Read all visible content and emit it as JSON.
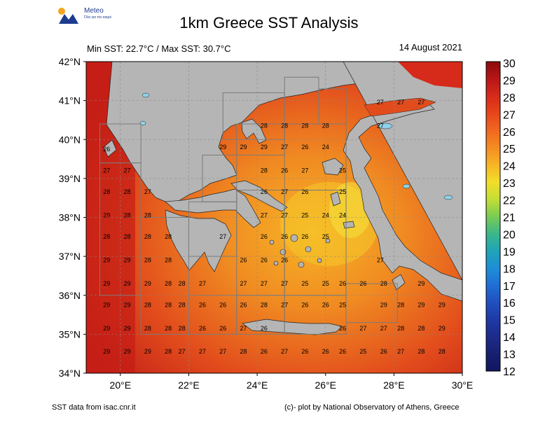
{
  "logo": {
    "name": "Meteo",
    "tagline": "Όλα για τον καιρό"
  },
  "title": "1km Greece SST Analysis",
  "subtitle": "Min SST: 22.7°C / Max SST: 30.7°C",
  "date": "14 August 2021",
  "footer_left": "SST data from isac.cnr.it",
  "footer_right": "(c)- plot by National Observatory of Athens, Greece",
  "map": {
    "lat_range": [
      34,
      42
    ],
    "lon_range": [
      19,
      30
    ],
    "lat_labels": [
      "42°N",
      "41°N",
      "40°N",
      "39°N",
      "38°N",
      "37°N",
      "36°N",
      "35°N",
      "34°N"
    ],
    "lon_labels": [
      "20°E",
      "22°E",
      "24°E",
      "26°E",
      "28°E",
      "30°E"
    ],
    "colors": {
      "land": "#b5b5b5",
      "grid_box": "#7a7a7a"
    },
    "sst_labels": [
      {
        "lon": 27.6,
        "lat": 40.9,
        "v": "27"
      },
      {
        "lon": 28.2,
        "lat": 40.9,
        "v": "27"
      },
      {
        "lon": 28.8,
        "lat": 40.9,
        "v": "27"
      },
      {
        "lon": 27.6,
        "lat": 40.3,
        "v": "27"
      },
      {
        "lon": 24.2,
        "lat": 40.3,
        "v": "28"
      },
      {
        "lon": 24.8,
        "lat": 40.3,
        "v": "28"
      },
      {
        "lon": 25.4,
        "lat": 40.3,
        "v": "28"
      },
      {
        "lon": 26.0,
        "lat": 40.3,
        "v": "28"
      },
      {
        "lon": 19.6,
        "lat": 39.7,
        "v": "26"
      },
      {
        "lon": 23.0,
        "lat": 39.75,
        "v": "29"
      },
      {
        "lon": 23.6,
        "lat": 39.75,
        "v": "29"
      },
      {
        "lon": 24.2,
        "lat": 39.75,
        "v": "29"
      },
      {
        "lon": 24.8,
        "lat": 39.75,
        "v": "27"
      },
      {
        "lon": 25.4,
        "lat": 39.75,
        "v": "26"
      },
      {
        "lon": 26.0,
        "lat": 39.75,
        "v": "24"
      },
      {
        "lon": 19.6,
        "lat": 39.15,
        "v": "27"
      },
      {
        "lon": 20.2,
        "lat": 39.15,
        "v": "27"
      },
      {
        "lon": 24.2,
        "lat": 39.15,
        "v": "28"
      },
      {
        "lon": 24.8,
        "lat": 39.15,
        "v": "26"
      },
      {
        "lon": 25.4,
        "lat": 39.15,
        "v": "27"
      },
      {
        "lon": 26.5,
        "lat": 39.15,
        "v": "25"
      },
      {
        "lon": 19.6,
        "lat": 38.6,
        "v": "28"
      },
      {
        "lon": 20.2,
        "lat": 38.6,
        "v": "28"
      },
      {
        "lon": 20.8,
        "lat": 38.6,
        "v": "27"
      },
      {
        "lon": 24.2,
        "lat": 38.6,
        "v": "26"
      },
      {
        "lon": 24.8,
        "lat": 38.6,
        "v": "27"
      },
      {
        "lon": 25.4,
        "lat": 38.6,
        "v": "26"
      },
      {
        "lon": 26.5,
        "lat": 38.6,
        "v": "25"
      },
      {
        "lon": 19.6,
        "lat": 38.0,
        "v": "29"
      },
      {
        "lon": 20.2,
        "lat": 38.0,
        "v": "28"
      },
      {
        "lon": 20.8,
        "lat": 38.0,
        "v": "28"
      },
      {
        "lon": 24.2,
        "lat": 38.0,
        "v": "27"
      },
      {
        "lon": 24.8,
        "lat": 38.0,
        "v": "27"
      },
      {
        "lon": 25.4,
        "lat": 38.0,
        "v": "25"
      },
      {
        "lon": 26.0,
        "lat": 38.0,
        "v": "24"
      },
      {
        "lon": 26.5,
        "lat": 38.0,
        "v": "24"
      },
      {
        "lon": 19.6,
        "lat": 37.45,
        "v": "28"
      },
      {
        "lon": 20.2,
        "lat": 37.45,
        "v": "28"
      },
      {
        "lon": 20.8,
        "lat": 37.45,
        "v": "28"
      },
      {
        "lon": 21.4,
        "lat": 37.45,
        "v": "28"
      },
      {
        "lon": 23.0,
        "lat": 37.45,
        "v": "27"
      },
      {
        "lon": 24.2,
        "lat": 37.45,
        "v": "26"
      },
      {
        "lon": 24.8,
        "lat": 37.45,
        "v": "26"
      },
      {
        "lon": 25.4,
        "lat": 37.45,
        "v": "26"
      },
      {
        "lon": 26.0,
        "lat": 37.45,
        "v": "25"
      },
      {
        "lon": 19.6,
        "lat": 36.85,
        "v": "29"
      },
      {
        "lon": 20.2,
        "lat": 36.85,
        "v": "29"
      },
      {
        "lon": 20.8,
        "lat": 36.85,
        "v": "28"
      },
      {
        "lon": 21.4,
        "lat": 36.85,
        "v": "28"
      },
      {
        "lon": 23.6,
        "lat": 36.85,
        "v": "26"
      },
      {
        "lon": 24.2,
        "lat": 36.85,
        "v": "26"
      },
      {
        "lon": 24.8,
        "lat": 36.85,
        "v": "26"
      },
      {
        "lon": 27.6,
        "lat": 36.85,
        "v": "27"
      },
      {
        "lon": 19.6,
        "lat": 36.25,
        "v": "29"
      },
      {
        "lon": 20.2,
        "lat": 36.25,
        "v": "29"
      },
      {
        "lon": 20.8,
        "lat": 36.25,
        "v": "29"
      },
      {
        "lon": 21.4,
        "lat": 36.25,
        "v": "28"
      },
      {
        "lon": 21.8,
        "lat": 36.25,
        "v": "28"
      },
      {
        "lon": 22.4,
        "lat": 36.25,
        "v": "27"
      },
      {
        "lon": 23.6,
        "lat": 36.25,
        "v": "27"
      },
      {
        "lon": 24.2,
        "lat": 36.25,
        "v": "27"
      },
      {
        "lon": 24.8,
        "lat": 36.25,
        "v": "27"
      },
      {
        "lon": 25.4,
        "lat": 36.25,
        "v": "25"
      },
      {
        "lon": 26.0,
        "lat": 36.25,
        "v": "25"
      },
      {
        "lon": 26.5,
        "lat": 36.25,
        "v": "26"
      },
      {
        "lon": 27.1,
        "lat": 36.25,
        "v": "26"
      },
      {
        "lon": 27.7,
        "lat": 36.25,
        "v": "28"
      },
      {
        "lon": 28.8,
        "lat": 36.25,
        "v": "29"
      },
      {
        "lon": 19.6,
        "lat": 35.7,
        "v": "29"
      },
      {
        "lon": 20.2,
        "lat": 35.7,
        "v": "29"
      },
      {
        "lon": 20.8,
        "lat": 35.7,
        "v": "28"
      },
      {
        "lon": 21.4,
        "lat": 35.7,
        "v": "28"
      },
      {
        "lon": 21.8,
        "lat": 35.7,
        "v": "28"
      },
      {
        "lon": 22.4,
        "lat": 35.7,
        "v": "26"
      },
      {
        "lon": 23.0,
        "lat": 35.7,
        "v": "26"
      },
      {
        "lon": 23.6,
        "lat": 35.7,
        "v": "26"
      },
      {
        "lon": 24.2,
        "lat": 35.7,
        "v": "28"
      },
      {
        "lon": 24.8,
        "lat": 35.7,
        "v": "27"
      },
      {
        "lon": 25.4,
        "lat": 35.7,
        "v": "26"
      },
      {
        "lon": 26.0,
        "lat": 35.7,
        "v": "26"
      },
      {
        "lon": 26.5,
        "lat": 35.7,
        "v": "25"
      },
      {
        "lon": 27.7,
        "lat": 35.7,
        "v": "29"
      },
      {
        "lon": 28.2,
        "lat": 35.7,
        "v": "28"
      },
      {
        "lon": 28.8,
        "lat": 35.7,
        "v": "29"
      },
      {
        "lon": 29.4,
        "lat": 35.7,
        "v": "29"
      },
      {
        "lon": 19.6,
        "lat": 35.1,
        "v": "29"
      },
      {
        "lon": 20.2,
        "lat": 35.1,
        "v": "29"
      },
      {
        "lon": 20.8,
        "lat": 35.1,
        "v": "28"
      },
      {
        "lon": 21.4,
        "lat": 35.1,
        "v": "28"
      },
      {
        "lon": 21.8,
        "lat": 35.1,
        "v": "28"
      },
      {
        "lon": 22.4,
        "lat": 35.1,
        "v": "26"
      },
      {
        "lon": 23.0,
        "lat": 35.1,
        "v": "26"
      },
      {
        "lon": 23.6,
        "lat": 35.1,
        "v": "27"
      },
      {
        "lon": 24.2,
        "lat": 35.1,
        "v": "26"
      },
      {
        "lon": 26.5,
        "lat": 35.1,
        "v": "26"
      },
      {
        "lon": 27.1,
        "lat": 35.1,
        "v": "27"
      },
      {
        "lon": 27.7,
        "lat": 35.1,
        "v": "27"
      },
      {
        "lon": 28.2,
        "lat": 35.1,
        "v": "28"
      },
      {
        "lon": 28.8,
        "lat": 35.1,
        "v": "28"
      },
      {
        "lon": 29.4,
        "lat": 35.1,
        "v": "29"
      },
      {
        "lon": 19.6,
        "lat": 34.5,
        "v": "29"
      },
      {
        "lon": 20.2,
        "lat": 34.5,
        "v": "29"
      },
      {
        "lon": 20.8,
        "lat": 34.5,
        "v": "29"
      },
      {
        "lon": 21.4,
        "lat": 34.5,
        "v": "28"
      },
      {
        "lon": 21.8,
        "lat": 34.5,
        "v": "27"
      },
      {
        "lon": 22.4,
        "lat": 34.5,
        "v": "27"
      },
      {
        "lon": 23.0,
        "lat": 34.5,
        "v": "27"
      },
      {
        "lon": 23.6,
        "lat": 34.5,
        "v": "28"
      },
      {
        "lon": 24.2,
        "lat": 34.5,
        "v": "26"
      },
      {
        "lon": 24.8,
        "lat": 34.5,
        "v": "27"
      },
      {
        "lon": 25.4,
        "lat": 34.5,
        "v": "26"
      },
      {
        "lon": 26.0,
        "lat": 34.5,
        "v": "26"
      },
      {
        "lon": 26.5,
        "lat": 34.5,
        "v": "26"
      },
      {
        "lon": 27.1,
        "lat": 34.5,
        "v": "25"
      },
      {
        "lon": 27.7,
        "lat": 34.5,
        "v": "26"
      },
      {
        "lon": 28.2,
        "lat": 34.5,
        "v": "27"
      },
      {
        "lon": 28.8,
        "lat": 34.5,
        "v": "28"
      },
      {
        "lon": 29.4,
        "lat": 34.5,
        "v": "28"
      }
    ]
  },
  "colorbar": {
    "labels": [
      "30",
      "29",
      "28",
      "27",
      "26",
      "25",
      "24",
      "23",
      "22",
      "21",
      "20",
      "19",
      "18",
      "17",
      "16",
      "15",
      "14",
      "13",
      "12"
    ],
    "stops": [
      "#8b0c0c",
      "#b81616",
      "#d62a1a",
      "#e8451a",
      "#f06820",
      "#f58c22",
      "#f7b526",
      "#f2dd2a",
      "#c5de35",
      "#79cc52",
      "#3cb78a",
      "#1fa4b7",
      "#1e8fd6",
      "#1f6fd6",
      "#2050c0",
      "#1f3aa6",
      "#1d2b8b",
      "#172070",
      "#111660"
    ]
  }
}
